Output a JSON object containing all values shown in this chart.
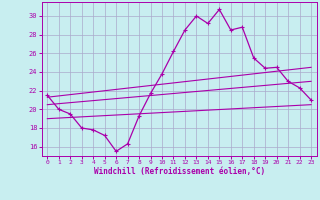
{
  "xlabel": "Windchill (Refroidissement éolien,°C)",
  "background_color": "#c8eef0",
  "grid_color": "#aaaacc",
  "line_color": "#aa00aa",
  "x_ticks": [
    0,
    1,
    2,
    3,
    4,
    5,
    6,
    7,
    8,
    9,
    10,
    11,
    12,
    13,
    14,
    15,
    16,
    17,
    18,
    19,
    20,
    21,
    22,
    23
  ],
  "ylim": [
    15.0,
    31.5
  ],
  "yticks": [
    16,
    18,
    20,
    22,
    24,
    26,
    28,
    30
  ],
  "series1": [
    21.5,
    20.0,
    19.5,
    18.0,
    17.8,
    17.2,
    15.5,
    16.3,
    19.3,
    21.7,
    23.8,
    26.2,
    28.5,
    30.0,
    29.2,
    30.7,
    28.5,
    28.8,
    25.5,
    24.4,
    24.5,
    23.0,
    22.3,
    21.0
  ],
  "line2": [
    [
      0,
      21.3
    ],
    [
      23,
      24.5
    ]
  ],
  "line3": [
    [
      0,
      20.5
    ],
    [
      23,
      23.0
    ]
  ],
  "line4": [
    [
      0,
      19.0
    ],
    [
      23,
      20.5
    ]
  ]
}
